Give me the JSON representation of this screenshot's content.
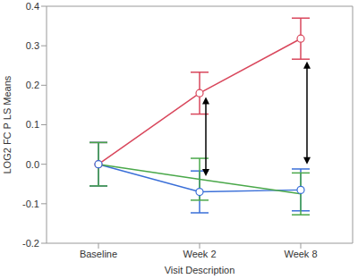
{
  "chart_data": {
    "type": "line",
    "x_label": "Visit Description",
    "y_label": "LOG2 FC P LS Means",
    "categories": [
      "Baseline",
      "Week 2",
      "Week 8"
    ],
    "series": [
      {
        "color": "#d9475c",
        "marker": "circle",
        "values": [
          0,
          0.18,
          0.318
        ],
        "error": [
          0.055,
          0.053,
          0.052
        ]
      },
      {
        "color": "#3a6fd8",
        "marker": "circle",
        "values": [
          0,
          -0.07,
          -0.065
        ],
        "error": [
          0.055,
          0.053,
          0.053
        ]
      },
      {
        "color": "#4aa84a",
        "marker": "none",
        "values": [
          0,
          -0.038,
          -0.075
        ],
        "error": [
          0.055,
          0.053,
          0.053
        ]
      }
    ],
    "arrows": [
      {
        "x": "Week 2",
        "from": 0.17,
        "to": -0.03
      },
      {
        "x": "Week 8",
        "from": 0.26,
        "to": 0.0
      }
    ],
    "ylim": [
      -0.2,
      0.4
    ],
    "yticks": [
      {
        "value": -0.2,
        "label": "-0.2"
      },
      {
        "value": -0.1,
        "label": "-0.1"
      },
      {
        "value": 0,
        "label": "0.0"
      },
      0.1,
      0.2,
      0.3,
      0.4
    ],
    "grid": false
  }
}
